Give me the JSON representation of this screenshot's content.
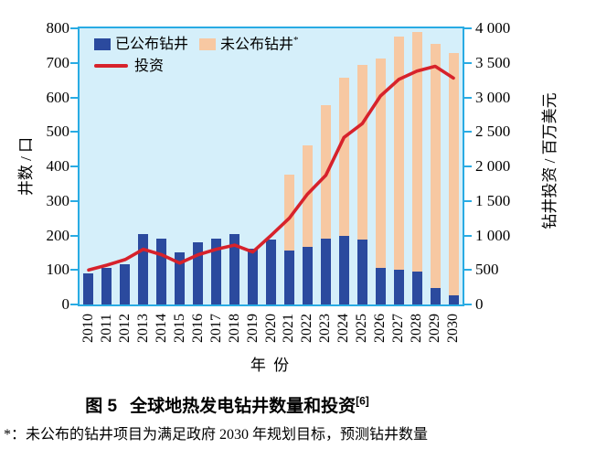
{
  "colors": {
    "plot_bg": "#d5effa",
    "frame": "#29abe3",
    "announced_bar": "#2b4a9e",
    "unannounced_bar": "#f7c8a2",
    "investment_line": "#d7222b",
    "text": "#000000"
  },
  "chart_data": {
    "type": "bar",
    "subtype": "stacked-bar-with-line-overlay",
    "title": "图 5 全球地热发电钻井数量和投资 [6]",
    "categories": [
      "2010",
      "2011",
      "2012",
      "2013",
      "2014",
      "2015",
      "2016",
      "2017",
      "2018",
      "2019",
      "2020",
      "2021",
      "2022",
      "2023",
      "2024",
      "2025",
      "2026",
      "2027",
      "2028",
      "2029",
      "2030"
    ],
    "series": [
      {
        "name": "已公布钻井",
        "type": "bar",
        "stack": "wells",
        "axis": "left",
        "values": [
          90,
          105,
          117,
          203,
          192,
          152,
          181,
          192,
          203,
          162,
          188,
          156,
          168,
          190,
          200,
          188,
          105,
          100,
          95,
          48,
          27
        ]
      },
      {
        "name": "未公布钻井*",
        "type": "bar",
        "stack": "wells",
        "axis": "left",
        "values": [
          0,
          0,
          0,
          0,
          0,
          0,
          0,
          0,
          0,
          0,
          0,
          219,
          294,
          388,
          458,
          507,
          608,
          675,
          695,
          707,
          701
        ]
      },
      {
        "name": "投资",
        "type": "line",
        "axis": "right",
        "values": [
          500,
          570,
          650,
          800,
          720,
          600,
          720,
          800,
          860,
          760,
          1000,
          1250,
          1600,
          1870,
          2420,
          2620,
          3020,
          3260,
          3380,
          3450,
          3280
        ]
      }
    ],
    "left_axis": {
      "label": "井数 / 口",
      "min": 0,
      "max": 800,
      "step": 100,
      "tick_labels": [
        "0",
        "100",
        "200",
        "300",
        "400",
        "500",
        "600",
        "700",
        "800"
      ]
    },
    "right_axis": {
      "label": "钻井投资 / 百万美元",
      "min": 0,
      "max": 4000,
      "step": 500,
      "tick_labels": [
        "0",
        "500",
        "1 000",
        "1 500",
        "2 000",
        "2 500",
        "3 000",
        "3 500",
        "4 000"
      ]
    },
    "x_axis": {
      "label": "年 份"
    },
    "legend_position": "top-left-inside",
    "grid": false
  },
  "legend": {
    "items": [
      {
        "label": "已公布钻井",
        "sup": ""
      },
      {
        "label": "未公布钻井",
        "sup": "*"
      },
      {
        "label": "投资",
        "sup": ""
      }
    ]
  },
  "caption": {
    "prefix": "图 5",
    "text": "全球地热发电钻井数量和投资",
    "sup": "[6]"
  },
  "footnote": "*：未公布的钻井项目为满足政府 2030 年规划目标，预测钻井数量"
}
